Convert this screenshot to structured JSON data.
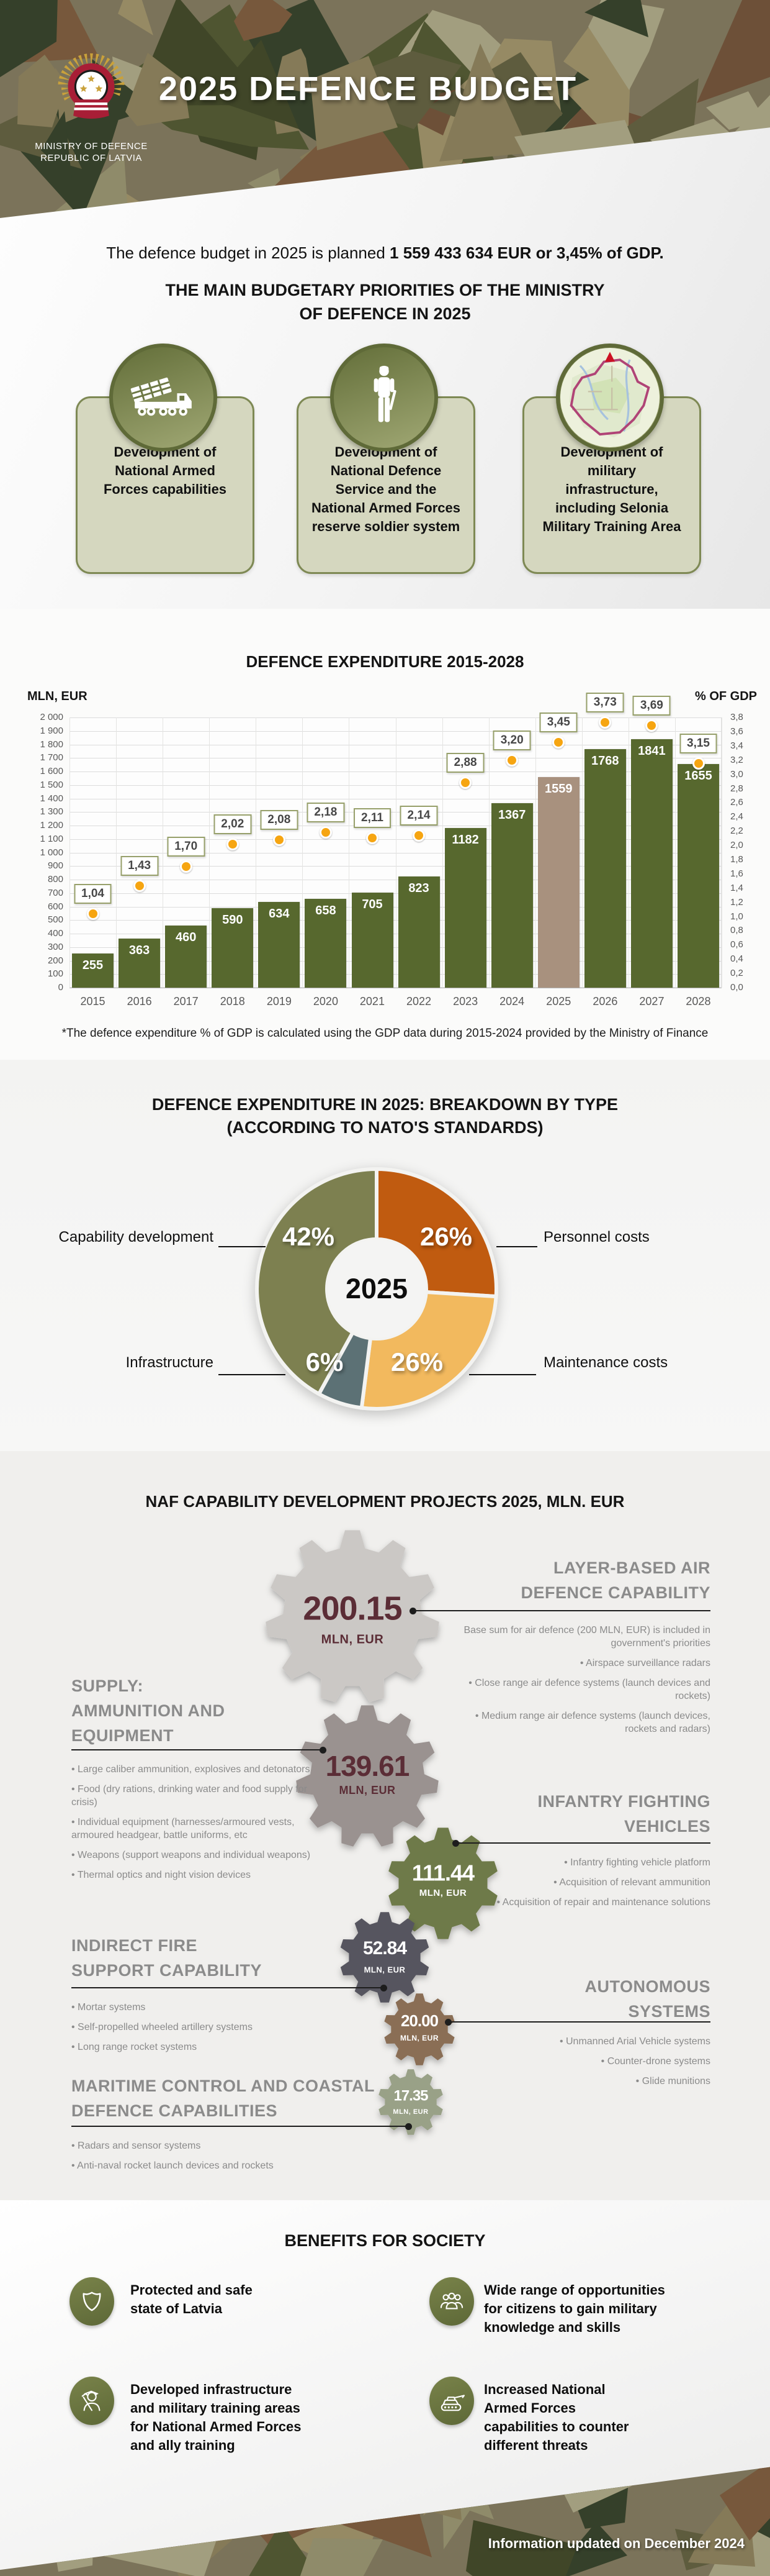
{
  "header": {
    "title": "2025 DEFENCE BUDGET",
    "org_line1": "MINISTRY OF DEFENCE",
    "org_line2": "REPUBLIC OF LATVIA"
  },
  "intro": {
    "normal": "The defence budget in 2025 is planned ",
    "bold": "1 559 433 634 EUR or 3,45% of GDP."
  },
  "priorities": {
    "heading": "THE MAIN BUDGETARY PRIORITIES OF THE MINISTRY\nOF DEFENCE IN 2025",
    "cards": [
      {
        "icon": "rocket-launcher-icon",
        "label": "Development of\nNational Armed\nForces capabilities"
      },
      {
        "icon": "soldier-icon",
        "label": "Development of\nNational Defence\nService and the\nNational Armed Forces\nreserve soldier system"
      },
      {
        "icon": "map-icon",
        "label": "Development of\nmilitary\ninfrastructure,\nincluding Selonia\nMilitary Training Area"
      }
    ]
  },
  "chart_data": [
    {
      "type": "bar",
      "title": "DEFENCE EXPENDITURE 2015-2028",
      "left_axis_label": "MLN, EUR",
      "right_axis_label": "% OF GDP",
      "categories": [
        "2015",
        "2016",
        "2017",
        "2018",
        "2019",
        "2020",
        "2021",
        "2022",
        "2023",
        "2024",
        "2025",
        "2026",
        "2027",
        "2028"
      ],
      "series": [
        {
          "name": "Defence expenditure, MLN EUR",
          "type": "bar",
          "values": [
            255,
            363,
            460,
            590,
            634,
            658,
            705,
            823,
            1182,
            1367,
            1559,
            1768,
            1841,
            1655
          ]
        },
        {
          "name": "% of GDP",
          "type": "point",
          "values": [
            1.04,
            1.43,
            1.7,
            2.02,
            2.08,
            2.18,
            2.11,
            2.14,
            2.88,
            3.2,
            3.45,
            3.73,
            3.69,
            3.15
          ],
          "labels": [
            "1,04",
            "1,43",
            "1,70",
            "2,02",
            "2,08",
            "2,18",
            "2,11",
            "2,14",
            "2,88",
            "3,20",
            "3,45",
            "3,73",
            "3,69",
            "3,15"
          ]
        }
      ],
      "ylim": [
        0,
        2000
      ],
      "y2lim": [
        0,
        3.8
      ],
      "grid": true,
      "highlight_category": "2025",
      "bar_color": "#57682e",
      "highlight_bar_color": "#a8917e",
      "point_color": "#f6a511",
      "footnote": "*The defence expenditure % of GDP is calculated using the GDP data during 2015-2024 provided by the Ministry of Finance"
    },
    {
      "type": "pie",
      "title": "DEFENCE EXPENDITURE IN 2025: BREAKDOWN BY TYPE",
      "subtitle": "(ACCORDING TO NATO'S STANDARDS)",
      "center_label": "2025",
      "donut": true,
      "slices": [
        {
          "label": "Personnel costs",
          "value": 26,
          "pct_label": "26%",
          "color": "#c05b10",
          "label_side": "right"
        },
        {
          "label": "Maintenance costs",
          "value": 26,
          "pct_label": "26%",
          "color": "#f2b95e",
          "label_side": "right"
        },
        {
          "label": "Infrastructure",
          "value": 6,
          "pct_label": "6%",
          "color": "#5c7175",
          "label_side": "left"
        },
        {
          "label": "Capability development",
          "value": 42,
          "pct_label": "42%",
          "color": "#7d8050",
          "label_side": "left"
        }
      ]
    }
  ],
  "projects": {
    "heading": "NAF CAPABILITY DEVELOPMENT PROJECTS 2025, MLN. EUR",
    "unit": "MLN, EUR",
    "items": [
      {
        "value": "200.15",
        "title": "LAYER-BASED AIR\nDEFENCE CAPABILITY",
        "side": "right",
        "gear_color": "#cbc8c5",
        "value_color": "#5b2d36",
        "intro": "Base sum for air defence (200 MLN, EUR) is included in government's priorities",
        "bullets": [
          "Airspace surveillance radars",
          "Close range air defence systems (launch devices and rockets)",
          "Medium range air defence systems (launch devices, rockets and radars)"
        ]
      },
      {
        "value": "139.61",
        "title": "SUPPLY:\nAMMUNITION AND\nEQUIPMENT",
        "side": "left",
        "gear_color": "#9a9290",
        "value_color": "#5b2d36",
        "intro": "",
        "bullets": [
          "Large caliber ammunition, explosives and detonators",
          "Food (dry rations, drinking water and food supply for crisis)",
          "Individual equipment (harnesses/armoured vests, armoured headgear, battle uniforms, etc",
          "Weapons (support weapons and individual weapons)",
          "Thermal optics and night vision devices"
        ]
      },
      {
        "value": "111.44",
        "title": "INFANTRY FIGHTING\nVEHICLES",
        "side": "right",
        "gear_color": "#6e7a48",
        "value_color": "#ffffff",
        "intro": "",
        "bullets": [
          "Infantry fighting vehicle platform",
          "Acquisition of relevant ammunition",
          "Acquisition of repair and maintenance solutions"
        ]
      },
      {
        "value": "52.84",
        "title": "INDIRECT FIRE\nSUPPORT CAPABILITY",
        "side": "left",
        "gear_color": "#57555e",
        "value_color": "#ffffff",
        "intro": "",
        "bullets": [
          "Mortar systems",
          "Self-propelled wheeled artillery systems",
          "Long range rocket systems"
        ]
      },
      {
        "value": "20.00",
        "title": "AUTONOMOUS\nSYSTEMS",
        "side": "right",
        "gear_color": "#8a6e55",
        "value_color": "#ffffff",
        "intro": "",
        "bullets": [
          "Unmanned Arial Vehicle systems",
          "Counter-drone systems",
          "Glide munitions"
        ]
      },
      {
        "value": "17.35",
        "title": "MARITIME CONTROL AND COASTAL\nDEFENCE CAPABILITIES",
        "side": "left",
        "gear_color": "#99a187",
        "value_color": "#ffffff",
        "intro": "",
        "bullets": [
          "Radars and sensor systems",
          "Anti-naval rocket launch devices and rockets"
        ]
      }
    ]
  },
  "benefits": {
    "heading": "BENEFITS FOR SOCIETY",
    "items": [
      {
        "icon": "shield-icon",
        "text": "Protected and safe\nstate of Latvia"
      },
      {
        "icon": "people-group-icon",
        "text": "Wide range of opportunities\nfor citizens to gain military\nknowledge and skills"
      },
      {
        "icon": "soldier-bust-icon",
        "text": "Developed infrastructure\nand military training areas\nfor National Armed Forces\nand ally training"
      },
      {
        "icon": "tank-icon",
        "text": "Increased National\nArmed Forces\ncapabilities to counter\ndifferent threats"
      }
    ]
  },
  "footer": {
    "note": "Information updated on December 2024"
  }
}
